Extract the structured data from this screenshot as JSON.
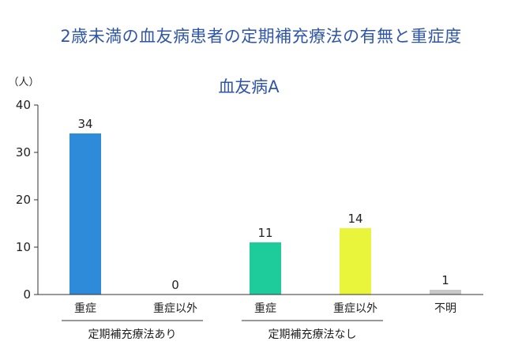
{
  "page": {
    "title": "2歳未満の血友病患者の定期補充療法の有無と重症度"
  },
  "chart_data": {
    "type": "bar",
    "title": "血友病A",
    "ylabel": "（人）",
    "ylim": [
      0,
      40
    ],
    "yticks": [
      0,
      10,
      20,
      30,
      40
    ],
    "categories": [
      "重症",
      "重症以外",
      "重症",
      "重症以外",
      "不明"
    ],
    "values": [
      34,
      0,
      11,
      14,
      1
    ],
    "bar_colors": [
      "#2e8bd9",
      "#2e8bd9",
      "#1ecc9b",
      "#e8f53a",
      "#c8c8c8"
    ],
    "groups": [
      {
        "label": "定期補充療法あり",
        "categories": [
          0,
          1
        ]
      },
      {
        "label": "定期補充療法なし",
        "categories": [
          2,
          3
        ]
      }
    ],
    "grid": false
  },
  "colors": {
    "title": "#2f56a8",
    "axis": "#333333",
    "text": "#222222"
  }
}
